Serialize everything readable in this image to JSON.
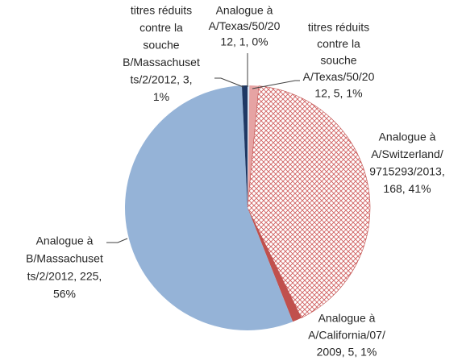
{
  "chart_data": {
    "type": "pie",
    "values": [
      1,
      5,
      168,
      5,
      225,
      3
    ],
    "labels": [
      [
        "Analogue à",
        "A/Texas/50/20",
        "12, 1, 0%"
      ],
      [
        "titres réduits",
        "contre la",
        "souche",
        "A/Texas/50/20",
        "12, 5, 1%"
      ],
      [
        "Analogue à",
        "A/Switzerland/",
        "9715293/2013,",
        "168, 41%"
      ],
      [
        "Analogue à",
        "A/California/07/",
        "2009, 5, 1%"
      ],
      [
        "Analogue à",
        "B/Massachuset",
        "ts/2/2012, 225,",
        "56%"
      ],
      [
        "titres réduits",
        "contre la",
        "souche",
        "B/Massachuset",
        "ts/2/2012, 3,",
        "1%"
      ]
    ],
    "colors": [
      "#dbe5f1",
      "#e6a3a3",
      "#c0504d",
      "#c0504d",
      "#95b3d7",
      "#1f3864"
    ],
    "hatched": [
      false,
      false,
      true,
      false,
      false,
      false
    ]
  }
}
